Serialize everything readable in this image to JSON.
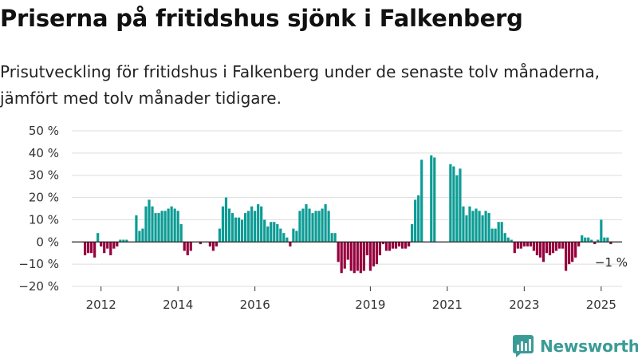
{
  "title": "Priserna på fritidshus sjönk i Falkenberg",
  "subtitle": "Prisutveckling för fritidshus i Falkenberg under de senaste tolv månaderna, jämfört med tolv månader tidigare.",
  "brand": "Newsworthy",
  "colors": {
    "positive": "#0d9c95",
    "negative": "#96003d",
    "grid": "#dddddd",
    "brand": "#3a9b96"
  },
  "chart_data": {
    "type": "bar",
    "x_unit": "month",
    "start": "2011-08",
    "ylim": [
      -20,
      50
    ],
    "yticks": [
      -20,
      -10,
      0,
      10,
      20,
      30,
      40,
      50
    ],
    "ytick_labels": [
      "−20 %",
      "−10 %",
      "0 %",
      "10 %",
      "20 %",
      "30 %",
      "40 %",
      "50 %"
    ],
    "xticks": [
      "2012",
      "2014",
      "2016",
      "2019",
      "2021",
      "2023",
      "2025"
    ],
    "grid": true,
    "annotation": "−1 %",
    "values": [
      -6,
      -5,
      -5,
      -7,
      4,
      -2,
      -5,
      -3,
      -6,
      -3,
      -2,
      1,
      1,
      1,
      null,
      null,
      12,
      5,
      6,
      16,
      19,
      16,
      13,
      13,
      14,
      14,
      15,
      16,
      15,
      14,
      8,
      -4,
      -6,
      -4,
      null,
      null,
      -1,
      null,
      null,
      -2,
      -4,
      -2,
      6,
      16,
      20,
      15,
      13,
      11,
      11,
      10,
      13,
      14,
      16,
      14,
      17,
      16,
      10,
      7,
      9,
      9,
      8,
      6,
      4,
      2,
      -2,
      6,
      5,
      14,
      15,
      17,
      15,
      13,
      14,
      14,
      15,
      17,
      14,
      4,
      4,
      -9,
      -14,
      -12,
      -8,
      -13,
      -14,
      -13,
      -14,
      -13,
      -6,
      -13,
      -11,
      -10,
      -6,
      -1,
      -4,
      -4,
      -3,
      -3,
      -2,
      -3,
      -3,
      -2,
      8,
      19,
      21,
      37,
      null,
      null,
      39,
      38,
      null,
      null,
      null,
      null,
      35,
      34,
      30,
      33,
      16,
      12,
      16,
      14,
      15,
      14,
      12,
      14,
      13,
      6,
      6,
      9,
      9,
      4,
      2,
      1,
      -5,
      -3,
      -3,
      -2,
      -2,
      -2,
      -4,
      -6,
      -7,
      -9,
      -5,
      -6,
      -5,
      -4,
      -3,
      -3,
      -13,
      -10,
      -9,
      -7,
      -2,
      3,
      2,
      2,
      1,
      -1,
      1,
      10,
      2,
      2,
      -1
    ]
  }
}
